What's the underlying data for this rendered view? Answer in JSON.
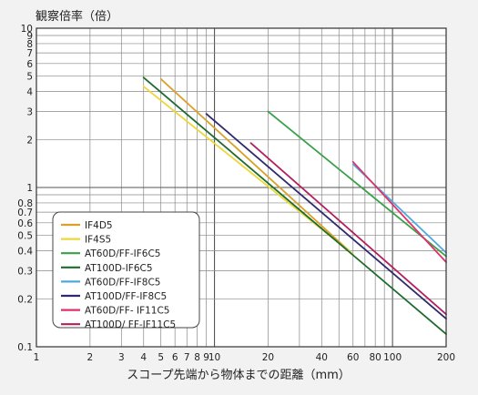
{
  "chart_data": {
    "type": "line",
    "title": "",
    "ylabel": "観察倍率（倍）",
    "xlabel": "スコープ先端から物体までの距離（mm）",
    "x_scale": "log",
    "y_scale": "log",
    "xlim": [
      1,
      200
    ],
    "ylim": [
      0.1,
      10
    ],
    "x_tick_labels": [
      {
        "value": 1,
        "label": "1"
      },
      {
        "value": 2,
        "label": "2"
      },
      {
        "value": 3,
        "label": "3"
      },
      {
        "value": 4,
        "label": "4"
      },
      {
        "value": 5,
        "label": "5"
      },
      {
        "value": 6,
        "label": "6"
      },
      {
        "value": 7,
        "label": "7"
      },
      {
        "value": 8,
        "label": "8"
      },
      {
        "value": 9,
        "label": "9"
      },
      {
        "value": 10,
        "label": "10"
      },
      {
        "value": 20,
        "label": "20"
      },
      {
        "value": 40,
        "label": "40"
      },
      {
        "value": 60,
        "label": "60"
      },
      {
        "value": 80,
        "label": "80"
      },
      {
        "value": 100,
        "label": "100"
      },
      {
        "value": 200,
        "label": "200"
      }
    ],
    "y_tick_labels": [
      {
        "value": 0.1,
        "label": "0.1"
      },
      {
        "value": 0.2,
        "label": "0.2"
      },
      {
        "value": 0.3,
        "label": "0.3"
      },
      {
        "value": 0.4,
        "label": "0.4"
      },
      {
        "value": 0.5,
        "label": "0.5"
      },
      {
        "value": 0.6,
        "label": "0.6"
      },
      {
        "value": 0.7,
        "label": "0.7"
      },
      {
        "value": 0.8,
        "label": "0.8"
      },
      {
        "value": 1,
        "label": "1"
      },
      {
        "value": 2,
        "label": "2"
      },
      {
        "value": 3,
        "label": "3"
      },
      {
        "value": 4,
        "label": "4"
      },
      {
        "value": 5,
        "label": "5"
      },
      {
        "value": 6,
        "label": "6"
      },
      {
        "value": 7,
        "label": "7"
      },
      {
        "value": 8,
        "label": "8"
      },
      {
        "value": 9,
        "label": "9"
      },
      {
        "value": 10,
        "label": "10"
      }
    ],
    "grid": true,
    "legend_position": "bottom-left",
    "series": [
      {
        "name": "IF4D5",
        "color": "#d9a12b",
        "points": [
          [
            5,
            4.8
          ],
          [
            60,
            0.38
          ]
        ]
      },
      {
        "name": "IF4S5",
        "color": "#ecd73a",
        "points": [
          [
            4,
            4.3
          ],
          [
            60,
            0.38
          ]
        ]
      },
      {
        "name": "AT60D/FF-IF6C5",
        "color": "#3aa14a",
        "points": [
          [
            20,
            3.0
          ],
          [
            200,
            0.37
          ]
        ]
      },
      {
        "name": "AT100D-IF6C5",
        "color": "#1e6b2e",
        "points": [
          [
            4,
            4.9
          ],
          [
            200,
            0.12
          ]
        ]
      },
      {
        "name": "AT60D/FF-IF8C5",
        "color": "#4fa9dc",
        "points": [
          [
            60,
            1.4
          ],
          [
            200,
            0.39
          ]
        ]
      },
      {
        "name": "AT100D/FF-IF8C5",
        "color": "#2e2a6e",
        "points": [
          [
            9,
            2.9
          ],
          [
            200,
            0.15
          ]
        ]
      },
      {
        "name": "AT60D/FF- IF11C5",
        "color": "#e0306a",
        "points": [
          [
            60,
            1.45
          ],
          [
            200,
            0.34
          ]
        ]
      },
      {
        "name": "AT100D/ FF-IF11C5",
        "color": "#b3205e",
        "points": [
          [
            16,
            1.9
          ],
          [
            200,
            0.16
          ]
        ]
      }
    ]
  }
}
